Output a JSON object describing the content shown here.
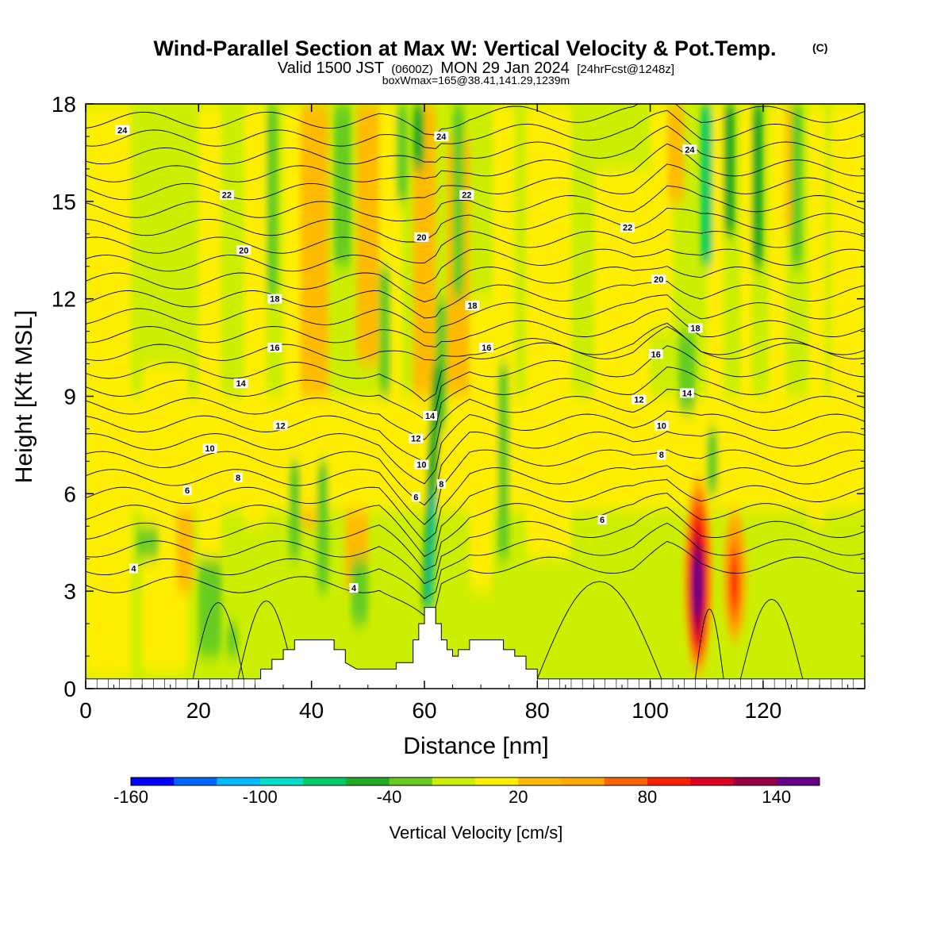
{
  "chart_data": {
    "type": "heatmap",
    "title": "Wind-Parallel Section at Max W: Vertical Velocity & Pot.Temp.",
    "title_mark": "(C)",
    "subtitle": {
      "lead": "Valid 1500 JST",
      "utc": "(0600Z)",
      "date": "MON 29 Jan 2024",
      "forecast": "[24hrFcst@1248z]"
    },
    "info": "boxWmax=165@38.41,141.29,1239m",
    "xlabel": "Distance [nm]",
    "ylabel": "Height [Kft MSL]",
    "xlim": [
      0,
      138
    ],
    "ylim": [
      0,
      18
    ],
    "x_ticks": [
      "0",
      "20",
      "40",
      "60",
      "80",
      "100",
      "120"
    ],
    "y_ticks": [
      "0",
      "3",
      "6",
      "9",
      "12",
      "15",
      "18"
    ],
    "colorbar": {
      "label": "Vertical Velocity [cm/s]",
      "tick_labels": [
        "-160",
        "-100",
        "-40",
        "20",
        "80",
        "140"
      ],
      "tick_values": [
        -160,
        -100,
        -40,
        20,
        80,
        140
      ],
      "range": [
        -160,
        160
      ],
      "colors": [
        "#0000ff",
        "#0066ff",
        "#00bbff",
        "#00ddcc",
        "#00cc66",
        "#22aa22",
        "#66cc22",
        "#ccee00",
        "#ffee00",
        "#ffbb00",
        "#ffaa00",
        "#ff6600",
        "#ff2200",
        "#dd0022",
        "#990044",
        "#660088"
      ]
    },
    "terrain_profile": [
      [
        0,
        0.3
      ],
      [
        29,
        0.3
      ],
      [
        31,
        0.3
      ],
      [
        31,
        0.6
      ],
      [
        33,
        0.6
      ],
      [
        33,
        0.9
      ],
      [
        35,
        0.9
      ],
      [
        35,
        1.2
      ],
      [
        37,
        1.2
      ],
      [
        37,
        1.5
      ],
      [
        44,
        1.5
      ],
      [
        44,
        1.2
      ],
      [
        46,
        1.2
      ],
      [
        46,
        0.8
      ],
      [
        48,
        0.6
      ],
      [
        52,
        0.6
      ],
      [
        55,
        0.6
      ],
      [
        55,
        0.8
      ],
      [
        58,
        0.8
      ],
      [
        58,
        1.5
      ],
      [
        59,
        1.5
      ],
      [
        59,
        2.0
      ],
      [
        60,
        2.0
      ],
      [
        60,
        2.5
      ],
      [
        62,
        2.5
      ],
      [
        62,
        2.0
      ],
      [
        63,
        2.0
      ],
      [
        63,
        1.5
      ],
      [
        64,
        1.5
      ],
      [
        64,
        1.2
      ],
      [
        65,
        1.2
      ],
      [
        65,
        1.0
      ],
      [
        66,
        1.0
      ],
      [
        66,
        1.2
      ],
      [
        68,
        1.2
      ],
      [
        68,
        1.5
      ],
      [
        74,
        1.5
      ],
      [
        74,
        1.2
      ],
      [
        76,
        1.2
      ],
      [
        76,
        1.0
      ],
      [
        78,
        1.0
      ],
      [
        78,
        0.6
      ],
      [
        80,
        0.6
      ],
      [
        80,
        0.3
      ],
      [
        138,
        0.3
      ]
    ],
    "contour_labels": [
      {
        "text": "24",
        "x": 6.5,
        "y": 17.2
      },
      {
        "text": "22",
        "x": 25,
        "y": 15.2
      },
      {
        "text": "20",
        "x": 28,
        "y": 13.5
      },
      {
        "text": "18",
        "x": 33.5,
        "y": 12.0
      },
      {
        "text": "16",
        "x": 33.5,
        "y": 10.5
      },
      {
        "text": "14",
        "x": 27.5,
        "y": 9.4
      },
      {
        "text": "12",
        "x": 34.5,
        "y": 8.1
      },
      {
        "text": "10",
        "x": 22,
        "y": 7.4
      },
      {
        "text": "8",
        "x": 27,
        "y": 6.5
      },
      {
        "text": "6",
        "x": 18,
        "y": 6.1
      },
      {
        "text": "4",
        "x": 8.5,
        "y": 3.7
      },
      {
        "text": "4",
        "x": 47.5,
        "y": 3.1
      },
      {
        "text": "24",
        "x": 63,
        "y": 17.0
      },
      {
        "text": "22",
        "x": 67.5,
        "y": 15.2
      },
      {
        "text": "20",
        "x": 59.5,
        "y": 13.9
      },
      {
        "text": "18",
        "x": 68.5,
        "y": 11.8
      },
      {
        "text": "16",
        "x": 71,
        "y": 10.5
      },
      {
        "text": "14",
        "x": 61,
        "y": 8.4
      },
      {
        "text": "12",
        "x": 58.5,
        "y": 7.7
      },
      {
        "text": "10",
        "x": 59.5,
        "y": 6.9
      },
      {
        "text": "8",
        "x": 63,
        "y": 6.3
      },
      {
        "text": "6",
        "x": 58.5,
        "y": 5.9
      },
      {
        "text": "24",
        "x": 107,
        "y": 16.6
      },
      {
        "text": "22",
        "x": 96,
        "y": 14.2
      },
      {
        "text": "20",
        "x": 101.5,
        "y": 12.6
      },
      {
        "text": "18",
        "x": 108,
        "y": 11.1
      },
      {
        "text": "16",
        "x": 101,
        "y": 10.3
      },
      {
        "text": "14",
        "x": 106.5,
        "y": 9.1
      },
      {
        "text": "12",
        "x": 98,
        "y": 8.9
      },
      {
        "text": "10",
        "x": 102,
        "y": 8.1
      },
      {
        "text": "8",
        "x": 102,
        "y": 7.2
      },
      {
        "text": "6",
        "x": 91.5,
        "y": 5.2
      }
    ]
  }
}
